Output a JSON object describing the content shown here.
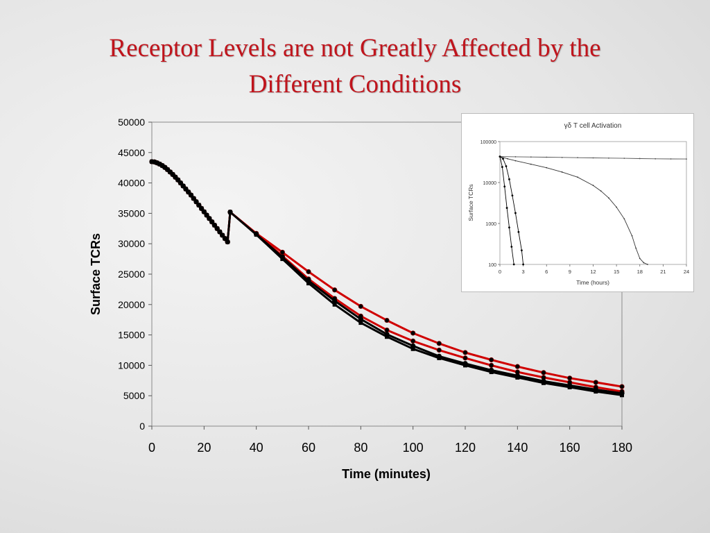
{
  "slide": {
    "title_line1": "Receptor Levels are not Greatly Affected by the",
    "title_line2": "Different Conditions"
  },
  "chart_data": [
    {
      "type": "line",
      "title": "",
      "xlabel": "Time (minutes)",
      "ylabel": "Surface TCRs",
      "xlim": [
        0,
        180
      ],
      "ylim": [
        0,
        50000
      ],
      "xticks": [
        0,
        20,
        40,
        60,
        80,
        100,
        120,
        140,
        160,
        180
      ],
      "yticks": [
        0,
        5000,
        10000,
        15000,
        20000,
        25000,
        30000,
        35000,
        40000,
        45000,
        50000
      ],
      "grid": false,
      "legend": "none",
      "series": [
        {
          "color": "#000000",
          "marker": "square",
          "x": [
            0,
            1,
            2,
            3,
            4,
            5,
            6,
            7,
            8,
            9,
            10,
            11,
            12,
            13,
            14,
            15,
            16,
            17,
            18,
            19,
            20,
            21,
            22,
            23,
            24,
            25,
            26,
            27,
            28,
            29,
            30,
            40,
            50,
            60,
            70,
            80,
            90,
            100,
            110,
            120,
            130,
            140,
            150,
            160,
            170,
            180
          ],
          "y": [
            43500,
            43450,
            43300,
            43100,
            42850,
            42550,
            42200,
            41800,
            41400,
            40950,
            40500,
            40000,
            39500,
            39000,
            38500,
            38000,
            37450,
            36900,
            36350,
            35800,
            35250,
            34700,
            34150,
            33600,
            33050,
            32500,
            31950,
            31400,
            30850,
            30300,
            35200,
            31500,
            27500,
            23500,
            20000,
            17000,
            14700,
            12700,
            11200,
            10000,
            8900,
            8000,
            7100,
            6400,
            5700,
            5100
          ]
        },
        {
          "color": "#d00000",
          "marker": "circle",
          "x": [
            0,
            1,
            2,
            3,
            4,
            5,
            6,
            7,
            8,
            9,
            10,
            11,
            12,
            13,
            14,
            15,
            16,
            17,
            18,
            19,
            20,
            21,
            22,
            23,
            24,
            25,
            26,
            27,
            28,
            29,
            30,
            40,
            50,
            60,
            70,
            80,
            90,
            100,
            110,
            120,
            130,
            140,
            150,
            160,
            170,
            180
          ],
          "y": [
            43500,
            43450,
            43300,
            43100,
            42850,
            42550,
            42200,
            41800,
            41400,
            40950,
            40500,
            40000,
            39500,
            39000,
            38500,
            38000,
            37450,
            36900,
            36350,
            35800,
            35250,
            34700,
            34150,
            33600,
            33050,
            32500,
            31950,
            31400,
            30850,
            30300,
            35200,
            31600,
            28000,
            24200,
            21000,
            18100,
            15800,
            14000,
            12500,
            11200,
            10000,
            8900,
            8000,
            7200,
            6400,
            5700
          ]
        },
        {
          "color": "#d00000",
          "marker": "circle",
          "x": [
            0,
            1,
            2,
            3,
            4,
            5,
            6,
            7,
            8,
            9,
            10,
            11,
            12,
            13,
            14,
            15,
            16,
            17,
            18,
            19,
            20,
            21,
            22,
            23,
            24,
            25,
            26,
            27,
            28,
            29,
            30,
            40,
            50,
            60,
            70,
            80,
            90,
            100,
            110,
            120,
            130,
            140,
            150,
            160,
            170,
            180
          ],
          "y": [
            43500,
            43450,
            43300,
            43100,
            42850,
            42550,
            42200,
            41800,
            41400,
            40950,
            40500,
            40000,
            39500,
            39000,
            38500,
            38000,
            37450,
            36900,
            36350,
            35800,
            35250,
            34700,
            34150,
            33600,
            33050,
            32500,
            31950,
            31400,
            30850,
            30300,
            35200,
            31700,
            28600,
            25400,
            22400,
            19700,
            17400,
            15300,
            13600,
            12100,
            10900,
            9800,
            8800,
            7900,
            7200,
            6500
          ]
        },
        {
          "color": "#000000",
          "marker": "circle",
          "x": [
            0,
            1,
            2,
            3,
            4,
            5,
            6,
            7,
            8,
            9,
            10,
            11,
            12,
            13,
            14,
            15,
            16,
            17,
            18,
            19,
            20,
            21,
            22,
            23,
            24,
            25,
            26,
            27,
            28,
            29,
            30,
            40,
            50,
            60,
            70,
            80,
            90,
            100,
            110,
            120,
            130,
            140,
            150,
            160,
            170,
            180
          ],
          "y": [
            43500,
            43450,
            43300,
            43100,
            42850,
            42550,
            42200,
            41800,
            41400,
            40950,
            40500,
            40000,
            39500,
            39000,
            38500,
            38000,
            37450,
            36900,
            36350,
            35800,
            35250,
            34700,
            34150,
            33600,
            33050,
            32500,
            31950,
            31400,
            30850,
            30300,
            35200,
            31550,
            27800,
            23900,
            20600,
            17600,
            15100,
            13200,
            11500,
            10300,
            9200,
            8300,
            7400,
            6700,
            6000,
            5400
          ]
        }
      ]
    },
    {
      "type": "line",
      "title": "γδ T cell Activation",
      "xlabel": "Time (hours)",
      "ylabel": "Surface TCRs",
      "xlim": [
        0,
        24
      ],
      "ylim": [
        100,
        100000
      ],
      "yscale": "log",
      "xticks": [
        0,
        3,
        6,
        9,
        12,
        15,
        18,
        21,
        24
      ],
      "yticks": [
        100,
        1000,
        10000,
        100000
      ],
      "grid": false,
      "legend": "none",
      "series": [
        {
          "color": "#555555",
          "marker": "dot",
          "x": [
            0,
            2,
            4,
            6,
            8,
            10,
            12,
            14,
            16,
            18,
            20,
            22,
            24
          ],
          "y": [
            43000,
            42500,
            42000,
            41500,
            41000,
            40500,
            40000,
            39500,
            39000,
            38500,
            38000,
            37700,
            37500
          ]
        },
        {
          "color": "#333333",
          "marker": "dot",
          "x": [
            0,
            1,
            2,
            4,
            6,
            8,
            10,
            12,
            13,
            14,
            15,
            16,
            17,
            17.5,
            18,
            18.5,
            19
          ],
          "y": [
            43000,
            38000,
            34000,
            28000,
            23000,
            18000,
            13500,
            8500,
            6200,
            4200,
            2500,
            1300,
            500,
            250,
            140,
            110,
            100
          ]
        },
        {
          "color": "#000000",
          "marker": "dot",
          "x": [
            0,
            0.4,
            0.8,
            1.2,
            1.6,
            2.0,
            2.4,
            2.8,
            3.0
          ],
          "y": [
            43000,
            38000,
            25000,
            12000,
            4800,
            1800,
            620,
            220,
            100
          ]
        },
        {
          "color": "#000000",
          "marker": "dot",
          "x": [
            0,
            0.3,
            0.6,
            0.9,
            1.2,
            1.5,
            1.8
          ],
          "y": [
            43000,
            24000,
            8000,
            2400,
            800,
            270,
            100
          ]
        }
      ]
    }
  ]
}
